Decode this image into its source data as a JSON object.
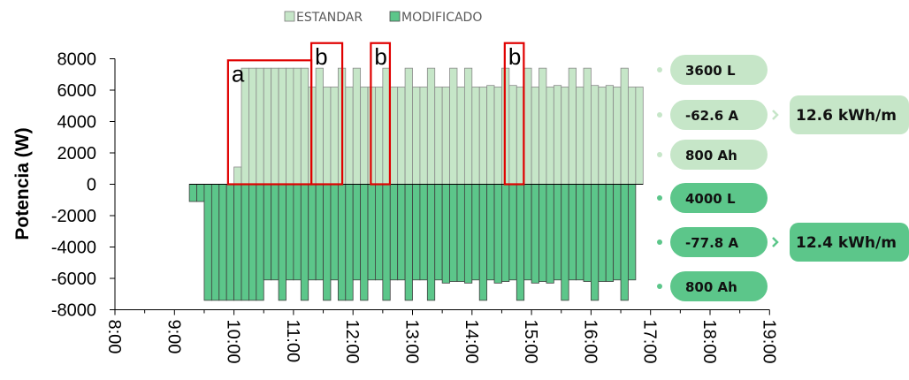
{
  "chart_data": {
    "type": "bar",
    "ylabel": "Potencia (W)",
    "ylim": [
      -8000,
      8000
    ],
    "yticks": [
      8000,
      6000,
      4000,
      2000,
      0,
      -2000,
      -4000,
      -6000,
      -8000
    ],
    "xlim_hours": [
      8,
      19
    ],
    "xticks": [
      "8:00",
      "9:00",
      "10:00",
      "11:00",
      "12:00",
      "13:00",
      "14:00",
      "15:00",
      "16:00",
      "17:00",
      "18:00",
      "19:00"
    ],
    "legend": {
      "placement": "top-center"
    },
    "bar_width_hours": 0.125,
    "series": [
      {
        "name": "ESTANDAR",
        "color": "#c6e6c8",
        "points": [
          {
            "t": 10.0,
            "v": 1100
          },
          {
            "t": 10.125,
            "v": 7400
          },
          {
            "t": 10.25,
            "v": 7400
          },
          {
            "t": 10.375,
            "v": 7400
          },
          {
            "t": 10.5,
            "v": 7400
          },
          {
            "t": 10.625,
            "v": 7400
          },
          {
            "t": 10.75,
            "v": 7400
          },
          {
            "t": 10.875,
            "v": 7400
          },
          {
            "t": 11.0,
            "v": 7400
          },
          {
            "t": 11.125,
            "v": 7400
          },
          {
            "t": 11.25,
            "v": 6200
          },
          {
            "t": 11.375,
            "v": 7400
          },
          {
            "t": 11.5,
            "v": 6200
          },
          {
            "t": 11.625,
            "v": 6200
          },
          {
            "t": 11.75,
            "v": 7400
          },
          {
            "t": 11.875,
            "v": 6200
          },
          {
            "t": 12.0,
            "v": 7400
          },
          {
            "t": 12.125,
            "v": 6200
          },
          {
            "t": 12.25,
            "v": 6200
          },
          {
            "t": 12.375,
            "v": 6200
          },
          {
            "t": 12.5,
            "v": 7400
          },
          {
            "t": 12.625,
            "v": 6200
          },
          {
            "t": 12.75,
            "v": 6200
          },
          {
            "t": 12.875,
            "v": 7400
          },
          {
            "t": 13.0,
            "v": 6200
          },
          {
            "t": 13.125,
            "v": 6200
          },
          {
            "t": 13.25,
            "v": 7400
          },
          {
            "t": 13.375,
            "v": 6200
          },
          {
            "t": 13.5,
            "v": 6200
          },
          {
            "t": 13.625,
            "v": 7400
          },
          {
            "t": 13.75,
            "v": 6200
          },
          {
            "t": 13.875,
            "v": 7400
          },
          {
            "t": 14.0,
            "v": 6200
          },
          {
            "t": 14.125,
            "v": 6200
          },
          {
            "t": 14.25,
            "v": 6300
          },
          {
            "t": 14.375,
            "v": 6200
          },
          {
            "t": 14.5,
            "v": 7400
          },
          {
            "t": 14.625,
            "v": 6300
          },
          {
            "t": 14.75,
            "v": 6200
          },
          {
            "t": 14.875,
            "v": 7400
          },
          {
            "t": 15.0,
            "v": 6200
          },
          {
            "t": 15.125,
            "v": 7400
          },
          {
            "t": 15.25,
            "v": 6200
          },
          {
            "t": 15.375,
            "v": 6300
          },
          {
            "t": 15.5,
            "v": 6200
          },
          {
            "t": 15.625,
            "v": 7400
          },
          {
            "t": 15.75,
            "v": 6200
          },
          {
            "t": 15.875,
            "v": 7400
          },
          {
            "t": 16.0,
            "v": 6300
          },
          {
            "t": 16.125,
            "v": 6200
          },
          {
            "t": 16.25,
            "v": 6300
          },
          {
            "t": 16.375,
            "v": 6200
          },
          {
            "t": 16.5,
            "v": 7400
          },
          {
            "t": 16.625,
            "v": 6200
          },
          {
            "t": 16.75,
            "v": 6200
          }
        ]
      },
      {
        "name": "MODIFICADO",
        "color": "#5cc68a",
        "points": [
          {
            "t": 9.25,
            "v": -1100
          },
          {
            "t": 9.375,
            "v": -1100
          },
          {
            "t": 9.5,
            "v": -7400
          },
          {
            "t": 9.625,
            "v": -7400
          },
          {
            "t": 9.75,
            "v": -7400
          },
          {
            "t": 9.875,
            "v": -7400
          },
          {
            "t": 10.0,
            "v": -7400
          },
          {
            "t": 10.125,
            "v": -7400
          },
          {
            "t": 10.25,
            "v": -7400
          },
          {
            "t": 10.375,
            "v": -7400
          },
          {
            "t": 10.5,
            "v": -6100
          },
          {
            "t": 10.625,
            "v": -6100
          },
          {
            "t": 10.75,
            "v": -7400
          },
          {
            "t": 10.875,
            "v": -6100
          },
          {
            "t": 11.0,
            "v": -6100
          },
          {
            "t": 11.125,
            "v": -7400
          },
          {
            "t": 11.25,
            "v": -6100
          },
          {
            "t": 11.375,
            "v": -6100
          },
          {
            "t": 11.5,
            "v": -7400
          },
          {
            "t": 11.625,
            "v": -6100
          },
          {
            "t": 11.75,
            "v": -7400
          },
          {
            "t": 11.875,
            "v": -7400
          },
          {
            "t": 12.0,
            "v": -6100
          },
          {
            "t": 12.125,
            "v": -7400
          },
          {
            "t": 12.25,
            "v": -6100
          },
          {
            "t": 12.375,
            "v": -6100
          },
          {
            "t": 12.5,
            "v": -7400
          },
          {
            "t": 12.625,
            "v": -6100
          },
          {
            "t": 12.75,
            "v": -6100
          },
          {
            "t": 12.875,
            "v": -7400
          },
          {
            "t": 13.0,
            "v": -6100
          },
          {
            "t": 13.125,
            "v": -6100
          },
          {
            "t": 13.25,
            "v": -7400
          },
          {
            "t": 13.375,
            "v": -6100
          },
          {
            "t": 13.5,
            "v": -6300
          },
          {
            "t": 13.625,
            "v": -6200
          },
          {
            "t": 13.75,
            "v": -6200
          },
          {
            "t": 13.875,
            "v": -6300
          },
          {
            "t": 14.0,
            "v": -6100
          },
          {
            "t": 14.125,
            "v": -7400
          },
          {
            "t": 14.25,
            "v": -6100
          },
          {
            "t": 14.375,
            "v": -6300
          },
          {
            "t": 14.5,
            "v": -6200
          },
          {
            "t": 14.625,
            "v": -6100
          },
          {
            "t": 14.75,
            "v": -7400
          },
          {
            "t": 14.875,
            "v": -6100
          },
          {
            "t": 15.0,
            "v": -6300
          },
          {
            "t": 15.125,
            "v": -6200
          },
          {
            "t": 15.25,
            "v": -6300
          },
          {
            "t": 15.375,
            "v": -6100
          },
          {
            "t": 15.5,
            "v": -7400
          },
          {
            "t": 15.625,
            "v": -6100
          },
          {
            "t": 15.75,
            "v": -6100
          },
          {
            "t": 15.875,
            "v": -6200
          },
          {
            "t": 16.0,
            "v": -7400
          },
          {
            "t": 16.125,
            "v": -6200
          },
          {
            "t": 16.25,
            "v": -6200
          },
          {
            "t": 16.375,
            "v": -6100
          },
          {
            "t": 16.5,
            "v": -7400
          },
          {
            "t": 16.625,
            "v": -6100
          }
        ]
      }
    ],
    "annotations": [
      {
        "label": "a",
        "t_start": 9.9,
        "t_end": 11.3,
        "v_top": 7900,
        "v_bottom": 0
      },
      {
        "label": "b",
        "t_start": 11.3,
        "t_end": 11.82,
        "v_top": 9000,
        "v_bottom": 0
      },
      {
        "label": "b",
        "t_start": 12.3,
        "t_end": 12.62,
        "v_top": 9000,
        "v_bottom": 0
      },
      {
        "label": "b",
        "t_start": 14.55,
        "t_end": 14.87,
        "v_top": 9000,
        "v_bottom": 0
      }
    ]
  },
  "side_panel": {
    "estandar": {
      "color": "#c6e6c8",
      "items": [
        "3600 L",
        "-62.6 A",
        "800 Ah"
      ],
      "energy": "12.6 kWh/m"
    },
    "modificado": {
      "color": "#5cc68a",
      "items": [
        "4000 L",
        "-77.8 A",
        "800 Ah"
      ],
      "energy": "12.4 kWh/m"
    }
  }
}
